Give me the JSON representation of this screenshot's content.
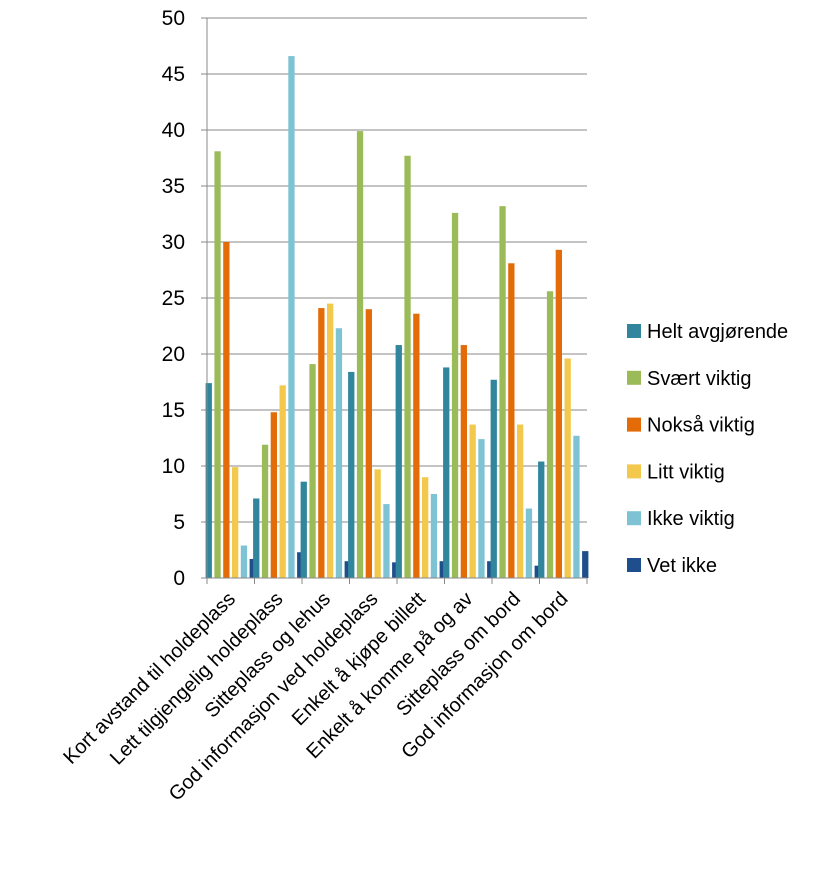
{
  "chart_data": {
    "type": "bar",
    "categories": [
      "Kort avstand til holdeplass",
      "Lett tilgjengelig holdeplass",
      "Sitteplass og lehus",
      "God informasjon ved holdeplass",
      "Enkelt å kjøpe billett",
      "Enkelt å komme på og av",
      "Sitteplass om bord",
      "God informasjon om bord"
    ],
    "series": [
      {
        "name": "Helt avgjørende",
        "color": "#31859c",
        "values": [
          17.4,
          7.1,
          8.6,
          18.4,
          20.8,
          18.8,
          17.7,
          10.4
        ]
      },
      {
        "name": "Svært viktig",
        "color": "#9bbb59",
        "values": [
          38.1,
          11.9,
          19.1,
          39.9,
          37.7,
          32.6,
          33.2,
          25.6
        ]
      },
      {
        "name": "Nokså viktig",
        "color": "#e36c09",
        "values": [
          30.0,
          14.8,
          24.1,
          24.0,
          23.6,
          20.8,
          28.1,
          29.3
        ]
      },
      {
        "name": "Litt viktig",
        "color": "#f2c94c",
        "values": [
          9.9,
          17.2,
          24.5,
          9.7,
          9.0,
          13.7,
          13.7,
          19.6
        ]
      },
      {
        "name": "Ikke viktig",
        "color": "#7ec3d4",
        "values": [
          2.9,
          46.6,
          22.3,
          6.6,
          7.5,
          12.4,
          6.2,
          12.7
        ]
      },
      {
        "name": "Vet ikke",
        "color": "#1f4e8c",
        "values": [
          1.7,
          2.3,
          1.5,
          1.4,
          1.5,
          1.5,
          1.1,
          2.4
        ]
      }
    ],
    "yticks": [
      "0",
      "5",
      "10",
      "15",
      "20",
      "25",
      "30",
      "35",
      "40",
      "45",
      "50"
    ],
    "ylim": [
      0,
      50
    ],
    "grid": true,
    "legend": "right"
  }
}
